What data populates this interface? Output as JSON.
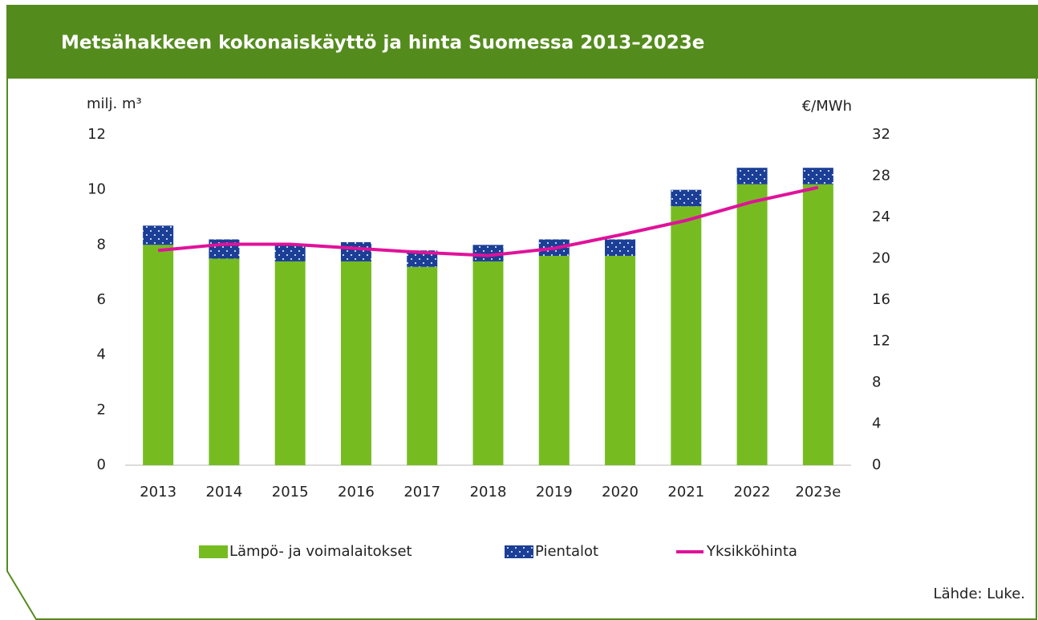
{
  "chart_data": {
    "type": "bar",
    "stacked": true,
    "title": "Metsähakkeen kokonaiskäyttö ja hinta Suomessa 2013–2023e",
    "y_label": "milj. m³",
    "y2_label": "€/MWh",
    "source": "Lähde: Luke.",
    "categories": [
      "2013",
      "2014",
      "2015",
      "2016",
      "2017",
      "2018",
      "2019",
      "2020",
      "2021",
      "2022",
      "2023e"
    ],
    "series": [
      {
        "name": "Lämpö- ja voimalaitokset",
        "color": "#76bc21",
        "values": [
          8.0,
          7.5,
          7.4,
          7.4,
          7.2,
          7.4,
          7.6,
          7.6,
          9.4,
          10.2,
          10.2
        ]
      },
      {
        "name": "Pientalot",
        "color": "#1b3f96",
        "pattern": "dots",
        "values": [
          0.7,
          0.7,
          0.6,
          0.7,
          0.6,
          0.6,
          0.6,
          0.6,
          0.6,
          0.6,
          0.6
        ]
      },
      {
        "name": "Yksikköhinta",
        "color": "#e0129a",
        "type": "line",
        "axis": "y2",
        "values": [
          20.8,
          21.4,
          21.4,
          21.0,
          20.6,
          20.3,
          21.0,
          22.3,
          23.7,
          25.5,
          26.9
        ]
      }
    ],
    "ylim": [
      0,
      12
    ],
    "yticks": [
      0,
      2,
      4,
      6,
      8,
      10,
      12
    ],
    "y2lim": [
      0,
      32
    ],
    "y2ticks": [
      0,
      4,
      8,
      12,
      16,
      20,
      24,
      28,
      32
    ],
    "grid": false,
    "legend": "bottom"
  }
}
